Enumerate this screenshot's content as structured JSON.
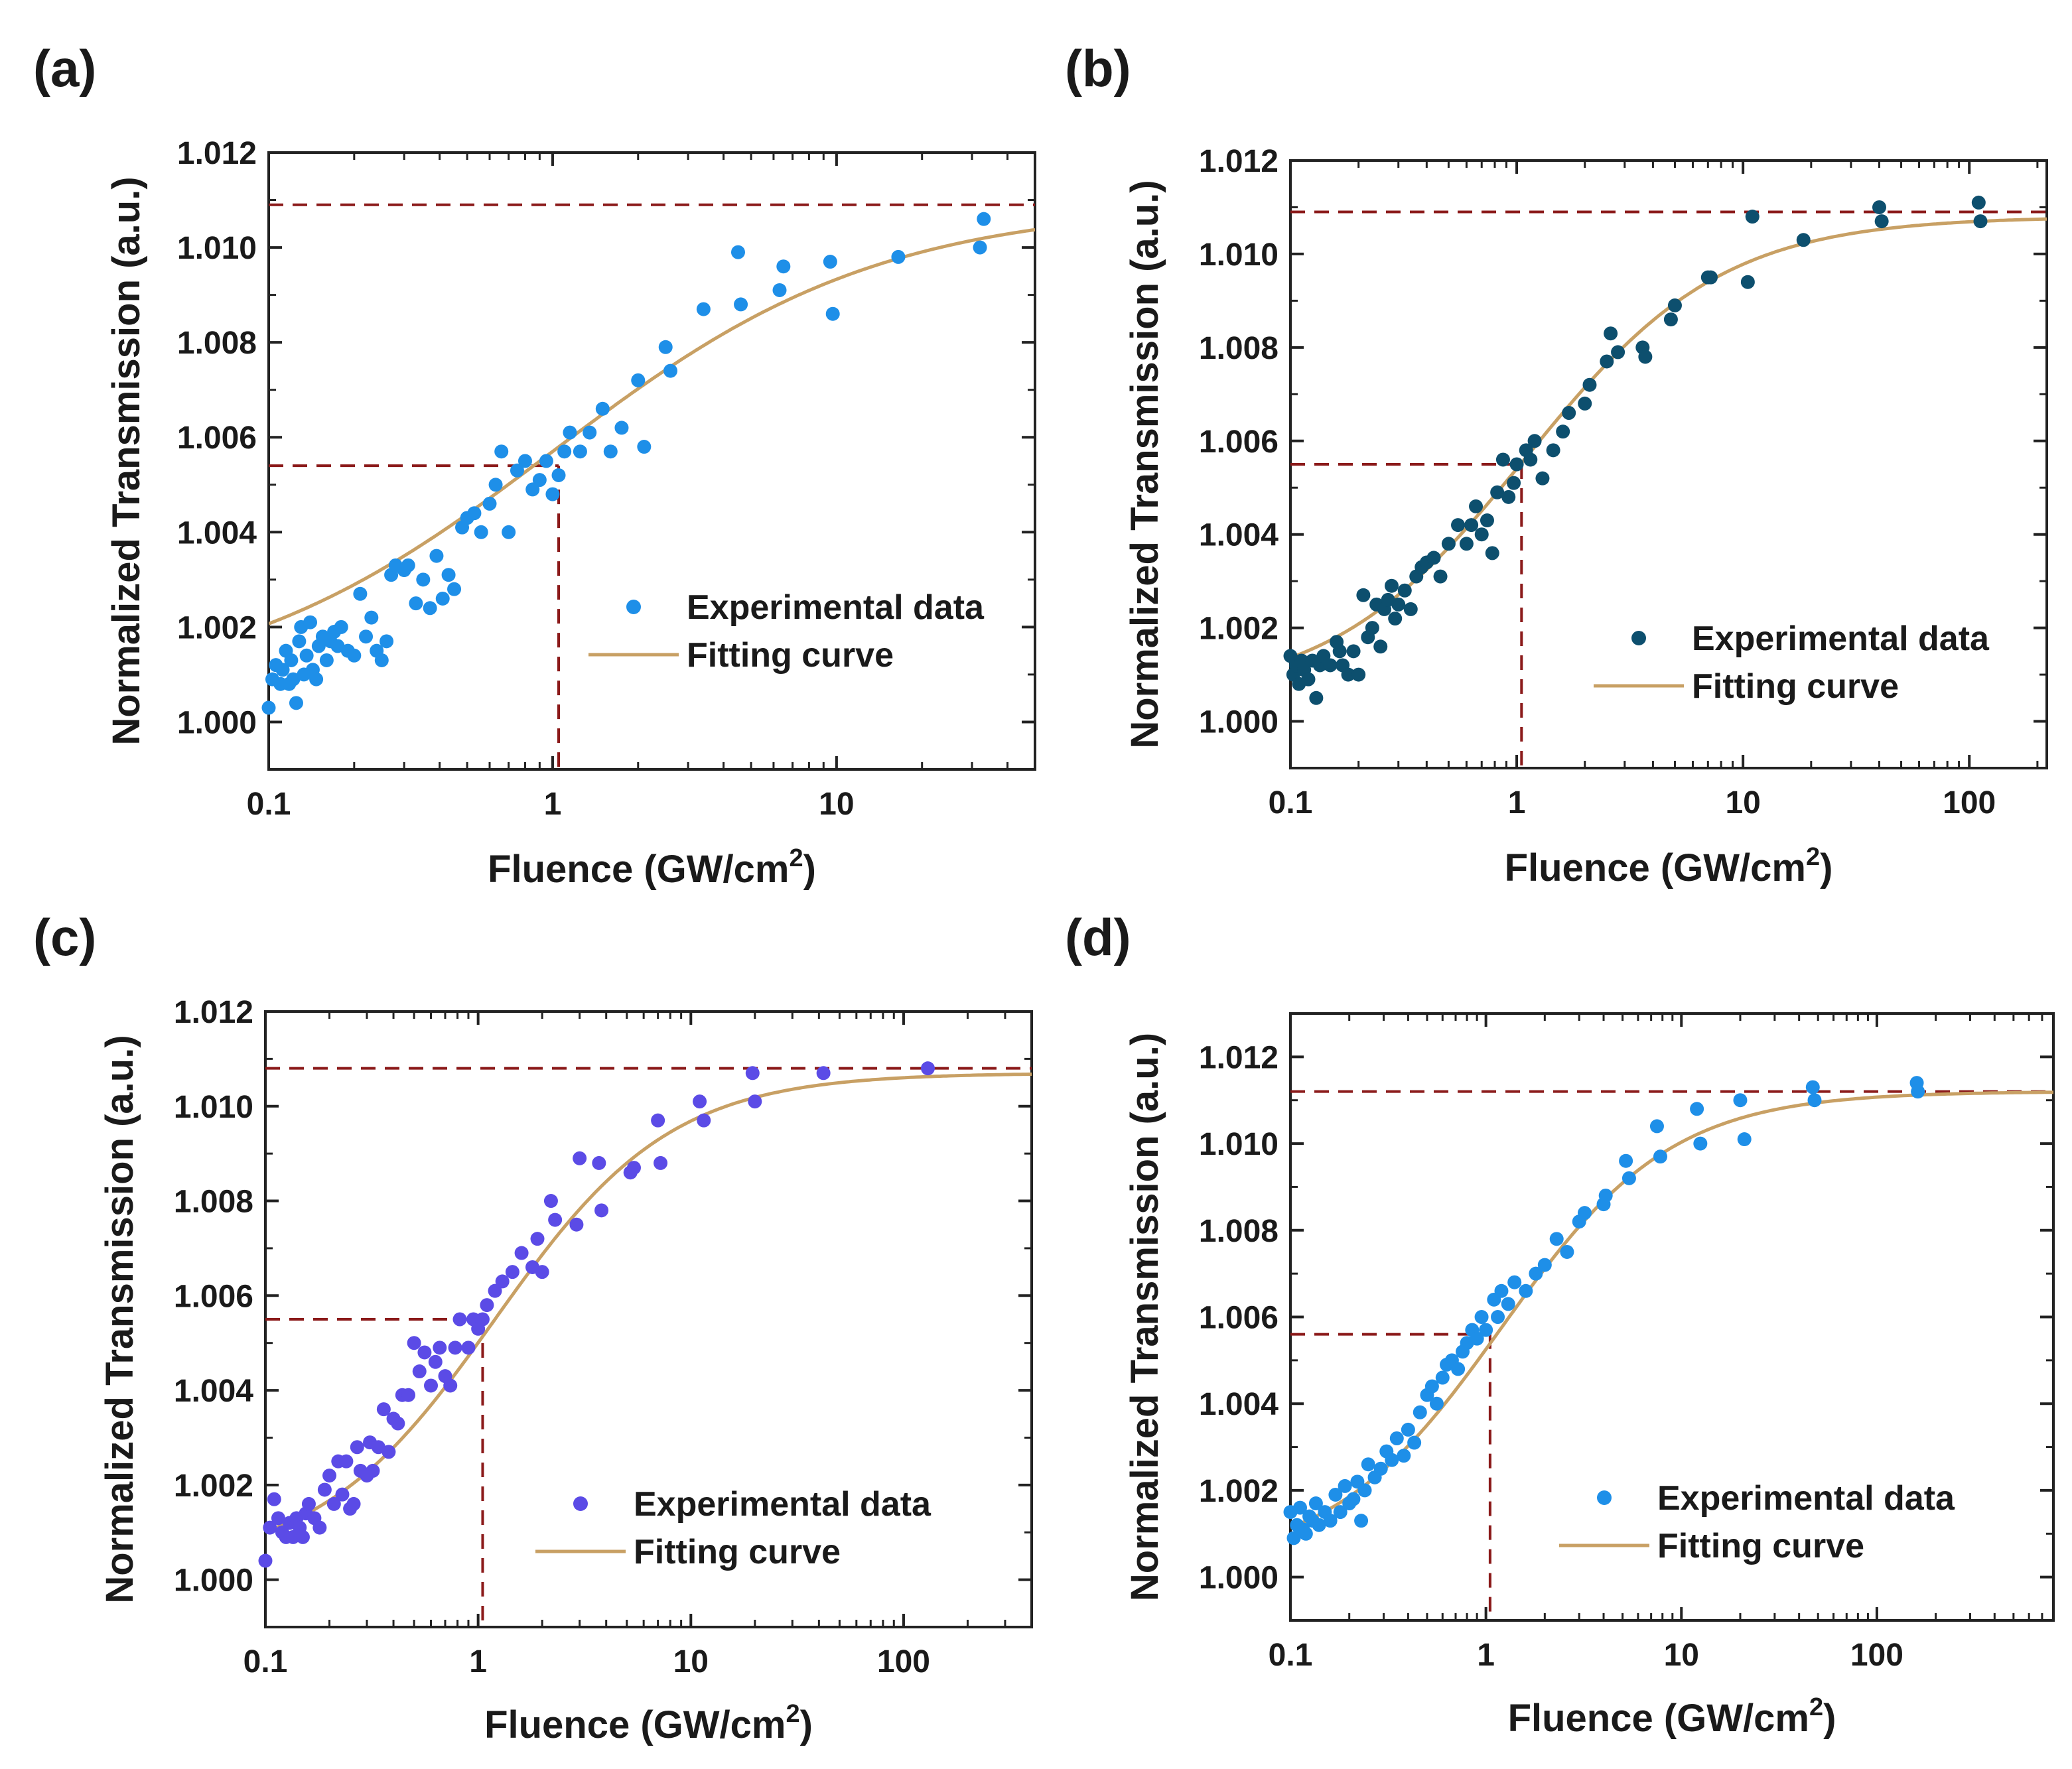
{
  "chart_data": [
    {
      "panel": "(a)",
      "type": "scatter",
      "xlabel": "Fluence (GW/cm",
      "xlabel_sup": "2",
      "xlabel_close": ")",
      "ylabel": "Normalized Transmission (a.u.)",
      "xscale": "log",
      "xlim": [
        0.1,
        50
      ],
      "ylim": [
        0.999,
        1.012
      ],
      "xticks": [
        0.1,
        1,
        10
      ],
      "xtick_labels": [
        "0.1",
        "1",
        "10"
      ],
      "yticks": [
        1.0,
        1.002,
        1.004,
        1.006,
        1.008,
        1.01,
        1.012
      ],
      "ytick_labels": [
        "1.000",
        "1.002",
        "1.004",
        "1.006",
        "1.008",
        "1.010",
        "1.012"
      ],
      "legend": {
        "data": "Experimental data",
        "fit": "Fitting curve",
        "position": "lower-right"
      },
      "marker_color": "#1e8fe8",
      "fit_color": "#c8a064",
      "ref_color": "#8b1a1a",
      "fit": {
        "Tmin": 1.0005,
        "Tmax": 1.0109,
        "Fsat": 1.0,
        "n": 0.75
      },
      "saturation_level": 1.0109,
      "half_level": 1.0054,
      "saturation_fluence": 1.05,
      "x": [
        0.1,
        0.103,
        0.106,
        0.11,
        0.112,
        0.115,
        0.118,
        0.12,
        0.122,
        0.125,
        0.128,
        0.13,
        0.133,
        0.136,
        0.14,
        0.143,
        0.147,
        0.15,
        0.155,
        0.16,
        0.165,
        0.17,
        0.175,
        0.18,
        0.19,
        0.2,
        0.21,
        0.22,
        0.23,
        0.24,
        0.25,
        0.26,
        0.27,
        0.28,
        0.3,
        0.31,
        0.33,
        0.35,
        0.37,
        0.39,
        0.41,
        0.43,
        0.45,
        0.48,
        0.5,
        0.53,
        0.56,
        0.6,
        0.63,
        0.66,
        0.7,
        0.75,
        0.8,
        0.85,
        0.9,
        0.95,
        1.0,
        1.05,
        1.1,
        1.15,
        1.25,
        1.35,
        1.5,
        1.6,
        1.75,
        2.0,
        2.1,
        2.5,
        2.6,
        3.4,
        4.5,
        4.6,
        6.3,
        6.5,
        9.5,
        9.7,
        16.5,
        32,
        33
      ],
      "y": [
        1.0003,
        1.0009,
        1.0012,
        1.0008,
        1.0011,
        1.0015,
        1.0008,
        1.0013,
        1.0009,
        1.0004,
        1.0017,
        1.002,
        1.001,
        1.0014,
        1.0021,
        1.0011,
        1.0009,
        1.0016,
        1.0018,
        1.0013,
        1.0017,
        1.0019,
        1.0016,
        1.002,
        1.0015,
        1.0014,
        1.0027,
        1.0018,
        1.0022,
        1.0015,
        1.0013,
        1.0017,
        1.0031,
        1.0033,
        1.0032,
        1.0033,
        1.0025,
        1.003,
        1.0024,
        1.0035,
        1.0026,
        1.0031,
        1.0028,
        1.0041,
        1.0043,
        1.0044,
        1.004,
        1.0046,
        1.005,
        1.0057,
        1.004,
        1.0053,
        1.0055,
        1.0049,
        1.0051,
        1.0055,
        1.0048,
        1.0052,
        1.0057,
        1.0061,
        1.0057,
        1.0061,
        1.0066,
        1.0057,
        1.0062,
        1.0072,
        1.0058,
        1.0079,
        1.0074,
        1.0087,
        1.0099,
        1.0088,
        1.0091,
        1.0096,
        1.0097,
        1.0086,
        1.0098,
        1.01,
        1.0106
      ]
    },
    {
      "panel": "(b)",
      "type": "scatter",
      "xlabel": "Fluence (GW/cm",
      "xlabel_sup": "2",
      "xlabel_close": ")",
      "ylabel": "Normalized Transmission (a.u.)",
      "xscale": "log",
      "xlim": [
        0.1,
        220
      ],
      "ylim": [
        0.999,
        1.012
      ],
      "xticks": [
        0.1,
        1,
        10,
        100
      ],
      "xtick_labels": [
        "0.1",
        "1",
        "10",
        "100"
      ],
      "yticks": [
        1.0,
        1.002,
        1.004,
        1.006,
        1.008,
        1.01,
        1.012
      ],
      "ytick_labels": [
        "1.000",
        "1.002",
        "1.004",
        "1.006",
        "1.008",
        "1.010",
        "1.012"
      ],
      "legend": {
        "data": "Experimental data",
        "fit": "Fitting curve",
        "position": "lower-right"
      },
      "marker_color": "#0d4f6e",
      "fit_color": "#c8a064",
      "ref_color": "#8b1a1a",
      "fit": {
        "Tmin": 1.0005,
        "Tmax": 1.0108,
        "Fsat": 1.1,
        "n": 1.0
      },
      "saturation_level": 1.0109,
      "half_level": 1.0055,
      "saturation_fluence": 1.05,
      "x": [
        0.1,
        0.103,
        0.106,
        0.109,
        0.112,
        0.115,
        0.12,
        0.125,
        0.13,
        0.135,
        0.14,
        0.15,
        0.16,
        0.165,
        0.17,
        0.18,
        0.19,
        0.2,
        0.21,
        0.22,
        0.23,
        0.24,
        0.25,
        0.26,
        0.27,
        0.28,
        0.29,
        0.3,
        0.32,
        0.34,
        0.36,
        0.38,
        0.4,
        0.43,
        0.46,
        0.5,
        0.55,
        0.6,
        0.63,
        0.66,
        0.7,
        0.74,
        0.78,
        0.82,
        0.87,
        0.92,
        0.97,
        1.0,
        1.1,
        1.15,
        1.2,
        1.3,
        1.45,
        1.6,
        1.7,
        2.0,
        2.1,
        2.5,
        2.6,
        2.8,
        3.6,
        3.7,
        4.8,
        5.0,
        7.0,
        7.2,
        10.5,
        11,
        18.5,
        40,
        41,
        110,
        112
      ],
      "y": [
        1.0014,
        1.001,
        1.0012,
        1.0008,
        1.0013,
        1.0011,
        1.0009,
        1.0013,
        1.0005,
        1.0012,
        1.0014,
        1.0012,
        1.0017,
        1.0015,
        1.0012,
        1.001,
        1.0015,
        1.001,
        1.0027,
        1.0018,
        1.002,
        1.0025,
        1.0016,
        1.0024,
        1.0026,
        1.0029,
        1.0022,
        1.0025,
        1.0028,
        1.0024,
        1.0031,
        1.0033,
        1.0034,
        1.0035,
        1.0031,
        1.0038,
        1.0042,
        1.0038,
        1.0042,
        1.0046,
        1.004,
        1.0043,
        1.0036,
        1.0049,
        1.0056,
        1.0048,
        1.0051,
        1.0055,
        1.0058,
        1.0056,
        1.006,
        1.0052,
        1.0058,
        1.0062,
        1.0066,
        1.0068,
        1.0072,
        1.0077,
        1.0083,
        1.0079,
        1.008,
        1.0078,
        1.0086,
        1.0089,
        1.0095,
        1.0095,
        1.0094,
        1.0108,
        1.0103,
        1.011,
        1.0107,
        1.0111,
        1.0107
      ]
    },
    {
      "panel": "(c)",
      "type": "scatter",
      "xlabel": "Fluence (GW/cm",
      "xlabel_sup": "2",
      "xlabel_close": ")",
      "ylabel": "Normalized Transmission (a.u.)",
      "xscale": "log",
      "xlim": [
        0.1,
        400
      ],
      "ylim": [
        0.999,
        1.012
      ],
      "xticks": [
        0.1,
        1,
        10,
        100
      ],
      "xtick_labels": [
        "0.1",
        "1",
        "10",
        "100"
      ],
      "yticks": [
        1.0,
        1.002,
        1.004,
        1.006,
        1.008,
        1.01,
        1.012
      ],
      "ytick_labels": [
        "1.000",
        "1.002",
        "1.004",
        "1.006",
        "1.008",
        "1.010",
        "1.012"
      ],
      "legend": {
        "data": "Experimental data",
        "fit": "Fitting curve",
        "position": "lower-right"
      },
      "marker_color": "#5b4be6",
      "fit_color": "#c8a064",
      "ref_color": "#8b1a1a",
      "fit": {
        "Tmin": 1.0003,
        "Tmax": 1.0107,
        "Fsat": 1.2,
        "n": 1.05
      },
      "saturation_level": 1.0108,
      "half_level": 1.0055,
      "saturation_fluence": 1.05,
      "x": [
        0.1,
        0.105,
        0.11,
        0.115,
        0.12,
        0.125,
        0.13,
        0.135,
        0.14,
        0.145,
        0.15,
        0.155,
        0.16,
        0.17,
        0.18,
        0.19,
        0.2,
        0.21,
        0.22,
        0.23,
        0.24,
        0.25,
        0.26,
        0.27,
        0.28,
        0.3,
        0.31,
        0.32,
        0.34,
        0.36,
        0.38,
        0.4,
        0.42,
        0.44,
        0.47,
        0.5,
        0.53,
        0.56,
        0.6,
        0.63,
        0.66,
        0.7,
        0.74,
        0.78,
        0.82,
        0.9,
        0.95,
        1.0,
        1.05,
        1.1,
        1.2,
        1.3,
        1.45,
        1.6,
        1.8,
        1.9,
        2.0,
        2.2,
        2.3,
        2.9,
        3.0,
        3.7,
        3.8,
        5.2,
        5.4,
        7.0,
        7.2,
        11,
        11.5,
        19.5,
        20,
        42,
        130
      ],
      "y": [
        1.0004,
        1.0011,
        1.0017,
        1.0013,
        1.001,
        1.0009,
        1.0012,
        1.0009,
        1.0013,
        1.0011,
        1.0009,
        1.0014,
        1.0016,
        1.0013,
        1.0011,
        1.0019,
        1.0022,
        1.0016,
        1.0025,
        1.0018,
        1.0025,
        1.0015,
        1.0016,
        1.0028,
        1.0023,
        1.0022,
        1.0029,
        1.0023,
        1.0028,
        1.0036,
        1.0027,
        1.0034,
        1.0033,
        1.0039,
        1.0039,
        1.005,
        1.0044,
        1.0048,
        1.0041,
        1.0046,
        1.0049,
        1.0043,
        1.0041,
        1.0049,
        1.0055,
        1.0049,
        1.0055,
        1.0053,
        1.0055,
        1.0058,
        1.0061,
        1.0063,
        1.0065,
        1.0069,
        1.0066,
        1.0072,
        1.0065,
        1.008,
        1.0076,
        1.0075,
        1.0089,
        1.0088,
        1.0078,
        1.0086,
        1.0087,
        1.0097,
        1.0088,
        1.0101,
        1.0097,
        1.0107,
        1.0101,
        1.0107,
        1.0108
      ]
    },
    {
      "panel": "(d)",
      "type": "scatter",
      "xlabel": "Fluence (GW/cm",
      "xlabel_sup": "2",
      "xlabel_close": ")",
      "ylabel": "Normalized Transmission (a.u.)",
      "xscale": "log",
      "xlim": [
        0.1,
        800
      ],
      "ylim": [
        0.999,
        1.013
      ],
      "xticks": [
        0.1,
        1,
        10,
        100
      ],
      "xtick_labels": [
        "0.1",
        "1",
        "10",
        "100"
      ],
      "yticks": [
        1.0,
        1.002,
        1.004,
        1.006,
        1.008,
        1.01,
        1.012
      ],
      "ytick_labels": [
        "1.000",
        "1.002",
        "1.004",
        "1.006",
        "1.008",
        "1.010",
        "1.012"
      ],
      "legend": {
        "data": "Experimental data",
        "fit": "Fitting curve",
        "position": "lower-right"
      },
      "marker_color": "#1e8fe8",
      "fit_color": "#c8a064",
      "ref_color": "#8b1a1a",
      "fit": {
        "Tmin": 1.0003,
        "Tmax": 1.0112,
        "Fsat": 1.2,
        "n": 1.0
      },
      "saturation_level": 1.0112,
      "half_level": 1.0056,
      "saturation_fluence": 1.05,
      "x": [
        0.1,
        0.104,
        0.108,
        0.112,
        0.116,
        0.12,
        0.125,
        0.13,
        0.135,
        0.14,
        0.15,
        0.16,
        0.17,
        0.18,
        0.19,
        0.2,
        0.21,
        0.22,
        0.23,
        0.24,
        0.25,
        0.27,
        0.29,
        0.31,
        0.33,
        0.35,
        0.38,
        0.4,
        0.43,
        0.46,
        0.5,
        0.53,
        0.56,
        0.6,
        0.63,
        0.67,
        0.72,
        0.76,
        0.8,
        0.85,
        0.9,
        0.95,
        1.0,
        1.1,
        1.15,
        1.2,
        1.3,
        1.4,
        1.6,
        1.8,
        2.0,
        2.3,
        2.6,
        3.0,
        3.2,
        4.0,
        4.1,
        5.2,
        5.4,
        7.5,
        7.8,
        12,
        12.5,
        20,
        21,
        47,
        48,
        160,
        162
      ],
      "y": [
        1.0015,
        1.0009,
        1.0012,
        1.0016,
        1.0011,
        1.001,
        1.0014,
        1.0013,
        1.0017,
        1.0012,
        1.0015,
        1.0013,
        1.0019,
        1.0015,
        1.0021,
        1.0017,
        1.0018,
        1.0022,
        1.0013,
        1.002,
        1.0026,
        1.0023,
        1.0025,
        1.0029,
        1.0027,
        1.0032,
        1.0028,
        1.0034,
        1.0031,
        1.0038,
        1.0042,
        1.0044,
        1.004,
        1.0046,
        1.0049,
        1.005,
        1.0048,
        1.0052,
        1.0054,
        1.0057,
        1.0055,
        1.006,
        1.0057,
        1.0064,
        1.006,
        1.0066,
        1.0063,
        1.0068,
        1.0066,
        1.007,
        1.0072,
        1.0078,
        1.0075,
        1.0082,
        1.0084,
        1.0086,
        1.0088,
        1.0096,
        1.0092,
        1.0104,
        1.0097,
        1.0108,
        1.01,
        1.011,
        1.0101,
        1.0113,
        1.011,
        1.0114,
        1.0112
      ]
    }
  ]
}
